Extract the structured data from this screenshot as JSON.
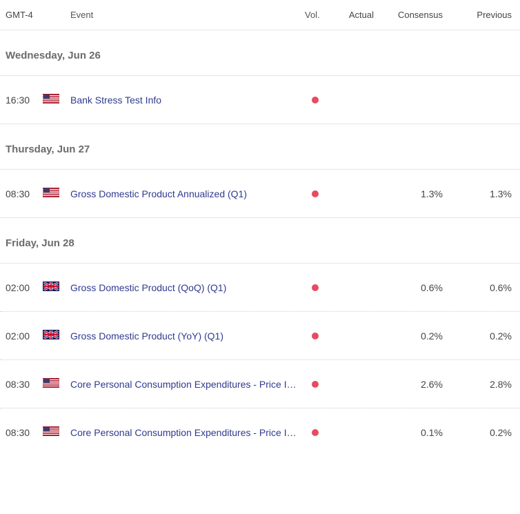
{
  "columns": {
    "timezone": "GMT-4",
    "event": "Event",
    "vol": "Vol.",
    "actual": "Actual",
    "consensus": "Consensus",
    "previous": "Previous"
  },
  "vol_dot_color": "#e84a5f",
  "days": [
    {
      "label": "Wednesday, Jun 26",
      "events": [
        {
          "time": "16:30",
          "flag": "us",
          "name": "Bank Stress Test Info",
          "actual": "",
          "consensus": "",
          "previous": "",
          "sep": "solid"
        }
      ]
    },
    {
      "label": "Thursday, Jun 27",
      "events": [
        {
          "time": "08:30",
          "flag": "us",
          "name": "Gross Domestic Product Annualized (Q1)",
          "actual": "",
          "consensus": "1.3%",
          "previous": "1.3%",
          "sep": "solid"
        }
      ]
    },
    {
      "label": "Friday, Jun 28",
      "events": [
        {
          "time": "02:00",
          "flag": "uk",
          "name": "Gross Domestic Product (QoQ) (Q1)",
          "actual": "",
          "consensus": "0.6%",
          "previous": "0.6%",
          "sep": "dotted"
        },
        {
          "time": "02:00",
          "flag": "uk",
          "name": "Gross Domestic Product (YoY) (Q1)",
          "actual": "",
          "consensus": "0.2%",
          "previous": "0.2%",
          "sep": "dotted"
        },
        {
          "time": "08:30",
          "flag": "us",
          "name": "Core Personal Consumption Expenditures - Price Index (YoY)",
          "actual": "",
          "consensus": "2.6%",
          "previous": "2.8%",
          "sep": "dotted"
        },
        {
          "time": "08:30",
          "flag": "us",
          "name": "Core Personal Consumption Expenditures - Price Index (MoM)",
          "actual": "",
          "consensus": "0.1%",
          "previous": "0.2%",
          "sep": "none"
        }
      ]
    }
  ]
}
